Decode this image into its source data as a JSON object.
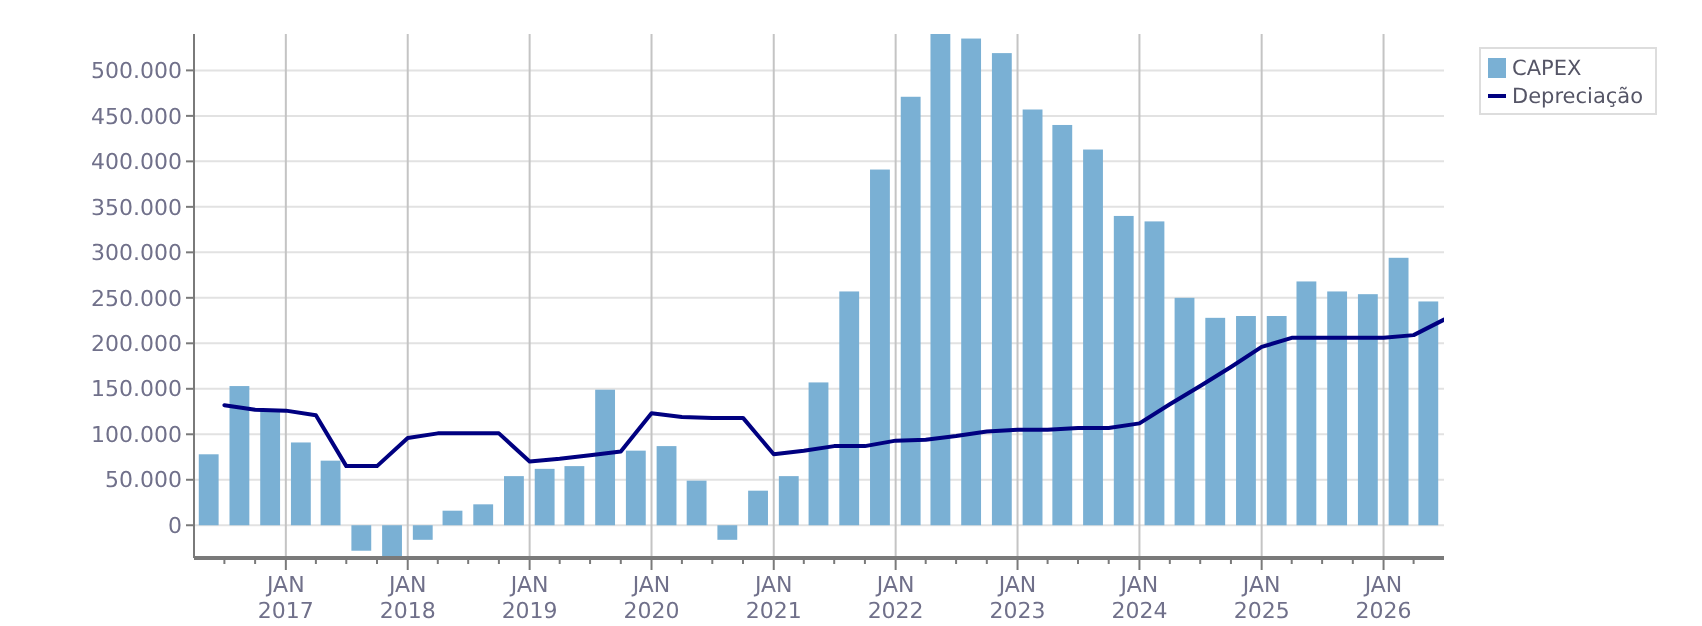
{
  "chart_data": {
    "type": "bar",
    "x": [
      "2016-05-15",
      "2016-08-15",
      "2016-11-15",
      "2017-02-15",
      "2017-05-15",
      "2017-08-15",
      "2017-11-15",
      "2018-02-15",
      "2018-05-15",
      "2018-08-15",
      "2018-11-15",
      "2019-02-15",
      "2019-05-15",
      "2019-08-15",
      "2019-11-15",
      "2020-02-15",
      "2020-05-15",
      "2020-08-15",
      "2020-11-15",
      "2021-02-15",
      "2021-05-15",
      "2021-08-15",
      "2021-11-15",
      "2022-02-15",
      "2022-05-15",
      "2022-08-15",
      "2022-11-15",
      "2023-02-15",
      "2023-05-15",
      "2023-08-15",
      "2023-11-15",
      "2024-02-15",
      "2024-05-15",
      "2024-08-15",
      "2024-11-15",
      "2025-02-15",
      "2025-05-15",
      "2025-08-15",
      "2025-11-15",
      "2026-02-15",
      "2026-05-15"
    ],
    "series": [
      {
        "name": "CAPEX",
        "color": "#7ab0d4",
        "values": [
          78000,
          153000,
          127000,
          91000,
          71000,
          -28000,
          -36000,
          -16000,
          16000,
          23000,
          54000,
          62000,
          65000,
          149000,
          82000,
          87000,
          49000,
          -16000,
          38000,
          54000,
          157000,
          257000,
          391000,
          471000,
          540000,
          535000,
          519000,
          457000,
          440000,
          413000,
          340000,
          334000,
          250000,
          228000,
          230000,
          230000,
          268000,
          257000,
          254000,
          294000,
          246000
        ]
      },
      {
        "name": "Depreciação",
        "type": "line",
        "color": "#000080",
        "x": [
          "2016-07-01",
          "2016-10-01",
          "2017-01-01",
          "2017-04-01",
          "2017-07-01",
          "2017-10-01",
          "2018-01-01",
          "2018-04-01",
          "2018-07-01",
          "2018-10-01",
          "2019-01-01",
          "2019-04-01",
          "2019-07-01",
          "2019-10-01",
          "2020-01-01",
          "2020-04-01",
          "2020-07-01",
          "2020-10-01",
          "2021-01-01",
          "2021-04-01",
          "2021-07-01",
          "2021-10-01",
          "2022-01-01",
          "2022-04-01",
          "2022-07-01",
          "2022-10-01",
          "2023-01-01",
          "2023-04-01",
          "2023-07-01",
          "2023-10-01",
          "2024-01-01",
          "2024-04-01",
          "2024-07-01",
          "2024-10-01",
          "2025-01-01",
          "2025-04-01",
          "2025-07-01",
          "2025-10-01",
          "2026-01-01",
          "2026-04-01",
          "2026-07-01"
        ],
        "values": [
          132000,
          127000,
          126000,
          121000,
          65000,
          65000,
          96000,
          101000,
          101000,
          101000,
          70000,
          73000,
          77000,
          81000,
          123000,
          119000,
          118000,
          118000,
          78000,
          82000,
          87000,
          87000,
          93000,
          94000,
          98000,
          103000,
          105000,
          105000,
          107000,
          107000,
          112000,
          133000,
          153000,
          174000,
          196000,
          206000,
          206000,
          206000,
          206000,
          209000,
          226000
        ]
      }
    ],
    "xlim": [
      "2016-04-01",
      "2026-07-01"
    ],
    "xticks": [
      {
        "value": "2016-07-01",
        "label": null
      },
      {
        "value": "2016-10-01",
        "label": null
      },
      {
        "value": "2017-01-01",
        "label": "JAN\n2017"
      },
      {
        "value": "2017-04-01",
        "label": null
      },
      {
        "value": "2017-07-01",
        "label": null
      },
      {
        "value": "2017-10-01",
        "label": null
      },
      {
        "value": "2018-01-01",
        "label": "JAN\n2018"
      },
      {
        "value": "2018-04-01",
        "label": null
      },
      {
        "value": "2018-07-01",
        "label": null
      },
      {
        "value": "2018-10-01",
        "label": null
      },
      {
        "value": "2019-01-01",
        "label": "JAN\n2019"
      },
      {
        "value": "2019-04-01",
        "label": null
      },
      {
        "value": "2019-07-01",
        "label": null
      },
      {
        "value": "2019-10-01",
        "label": null
      },
      {
        "value": "2020-01-01",
        "label": "JAN\n2020"
      },
      {
        "value": "2020-04-01",
        "label": null
      },
      {
        "value": "2020-07-01",
        "label": null
      },
      {
        "value": "2020-10-01",
        "label": null
      },
      {
        "value": "2021-01-01",
        "label": "JAN\n2021"
      },
      {
        "value": "2021-04-01",
        "label": null
      },
      {
        "value": "2021-07-01",
        "label": null
      },
      {
        "value": "2021-10-01",
        "label": null
      },
      {
        "value": "2022-01-01",
        "label": "JAN\n2022"
      },
      {
        "value": "2022-04-01",
        "label": null
      },
      {
        "value": "2022-07-01",
        "label": null
      },
      {
        "value": "2022-10-01",
        "label": null
      },
      {
        "value": "2023-01-01",
        "label": "JAN\n2023"
      },
      {
        "value": "2023-04-01",
        "label": null
      },
      {
        "value": "2023-07-01",
        "label": null
      },
      {
        "value": "2023-10-01",
        "label": null
      },
      {
        "value": "2024-01-01",
        "label": "JAN\n2024"
      },
      {
        "value": "2024-04-01",
        "label": null
      },
      {
        "value": "2024-07-01",
        "label": null
      },
      {
        "value": "2024-10-01",
        "label": null
      },
      {
        "value": "2025-01-01",
        "label": "JAN\n2025"
      },
      {
        "value": "2025-04-01",
        "label": null
      },
      {
        "value": "2025-07-01",
        "label": null
      },
      {
        "value": "2025-10-01",
        "label": null
      },
      {
        "value": "2026-01-01",
        "label": "JAN\n2026"
      },
      {
        "value": "2026-04-01",
        "label": null
      }
    ],
    "ylim": [
      -36000,
      540000
    ],
    "yticks": [
      {
        "value": 0,
        "label": "0"
      },
      {
        "value": 50000,
        "label": "50.000"
      },
      {
        "value": 100000,
        "label": "100.000"
      },
      {
        "value": 150000,
        "label": "150.000"
      },
      {
        "value": 200000,
        "label": "200.000"
      },
      {
        "value": 250000,
        "label": "250.000"
      },
      {
        "value": 300000,
        "label": "300.000"
      },
      {
        "value": 350000,
        "label": "350.000"
      },
      {
        "value": 400000,
        "label": "400.000"
      },
      {
        "value": 450000,
        "label": "450.000"
      },
      {
        "value": 500000,
        "label": "500.000"
      }
    ],
    "grid": true,
    "legend": "top right",
    "marker": "none",
    "line_style": "solid"
  }
}
